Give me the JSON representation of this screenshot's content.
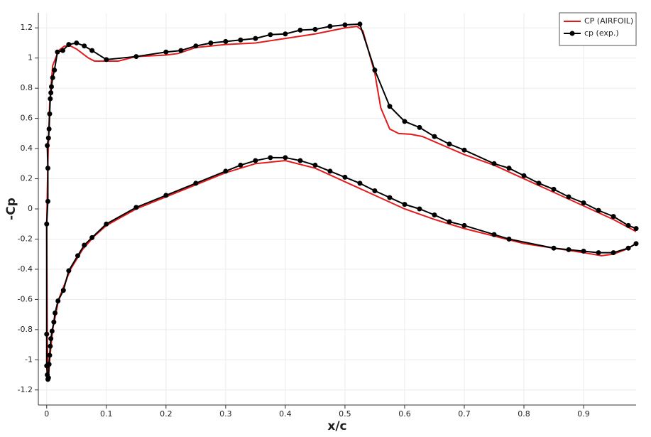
{
  "chart_data": {
    "type": "line",
    "xlabel": "x/c",
    "ylabel": "-Cp",
    "xlim": [
      -0.014,
      0.988
    ],
    "ylim": [
      -1.3,
      1.3
    ],
    "xticks": [
      0,
      0.1,
      0.2,
      0.3,
      0.4,
      0.5,
      0.6,
      0.7,
      0.8,
      0.9
    ],
    "yticks": [
      -1.2,
      -1,
      -0.8,
      -0.6,
      -0.4,
      -0.2,
      0,
      0.2,
      0.4,
      0.6,
      0.8,
      1,
      1.2
    ],
    "grid": true,
    "legend": "top-right",
    "series": [
      {
        "name": "CP (AIRFOIL)",
        "color": "#e31a1c",
        "markers": false,
        "x": [
          0.988,
          0.97,
          0.95,
          0.93,
          0.9,
          0.8,
          0.7,
          0.65,
          0.6,
          0.55,
          0.5,
          0.45,
          0.4,
          0.35,
          0.3,
          0.25,
          0.2,
          0.15,
          0.1,
          0.08,
          0.06,
          0.04,
          0.03,
          0.02,
          0.01,
          0.005,
          0.003,
          0.001,
          0,
          0.002,
          0.005,
          0.01,
          0.02,
          0.03,
          0.04,
          0.05,
          0.06,
          0.07,
          0.08,
          0.1,
          0.12,
          0.15,
          0.2,
          0.22,
          0.25,
          0.3,
          0.35,
          0.4,
          0.45,
          0.5,
          0.52,
          0.53,
          0.55,
          0.56,
          0.575,
          0.59,
          0.61,
          0.63,
          0.7,
          0.75,
          0.8,
          0.85,
          0.9,
          0.95,
          0.988
        ],
        "values": [
          -0.23,
          -0.27,
          -0.3,
          -0.31,
          -0.29,
          -0.23,
          -0.13,
          -0.07,
          0,
          0.09,
          0.18,
          0.27,
          0.32,
          0.3,
          0.24,
          0.16,
          0.08,
          0,
          -0.11,
          -0.18,
          -0.27,
          -0.4,
          -0.5,
          -0.6,
          -0.8,
          -1,
          -1.12,
          -0.9,
          -0.1,
          0.3,
          0.7,
          0.95,
          1.05,
          1.08,
          1.08,
          1.06,
          1.03,
          1,
          0.98,
          0.98,
          0.98,
          1.01,
          1.02,
          1.03,
          1.07,
          1.09,
          1.1,
          1.13,
          1.16,
          1.2,
          1.21,
          1.18,
          0.9,
          0.67,
          0.53,
          0.5,
          0.495,
          0.48,
          0.36,
          0.29,
          0.2,
          0.11,
          0.02,
          -0.07,
          -0.15
        ]
      },
      {
        "name": "cp (exp.)",
        "color": "#000000",
        "markers": true,
        "x": [
          0.988,
          0.975,
          0.95,
          0.925,
          0.9,
          0.875,
          0.85,
          0.775,
          0.75,
          0.7,
          0.675,
          0.65,
          0.625,
          0.6,
          0.575,
          0.55,
          0.525,
          0.5,
          0.475,
          0.45,
          0.425,
          0.4,
          0.375,
          0.35,
          0.325,
          0.3,
          0.25,
          0.2,
          0.15,
          0.1,
          0.076,
          0.063,
          0.052,
          0.037,
          0.028,
          0.019,
          0.014,
          0.012,
          0.009,
          0.007,
          0.006,
          0.005,
          0.004,
          0.003,
          0.002,
          0.001,
          0,
          0,
          0,
          0.002,
          0.002,
          0.001,
          0.003,
          0.004,
          0.005,
          0.006,
          0.007,
          0.008,
          0.01,
          0.013,
          0.018,
          0.027,
          0.037,
          0.05,
          0.063,
          0.076,
          0.1,
          0.15,
          0.2,
          0.225,
          0.25,
          0.275,
          0.3,
          0.325,
          0.35,
          0.375,
          0.4,
          0.425,
          0.45,
          0.475,
          0.5,
          0.525,
          0.55,
          0.575,
          0.6,
          0.625,
          0.65,
          0.675,
          0.7,
          0.75,
          0.775,
          0.8,
          0.825,
          0.85,
          0.875,
          0.9,
          0.925,
          0.95,
          0.975,
          0.988
        ],
        "values": [
          -0.23,
          -0.26,
          -0.29,
          -0.29,
          -0.28,
          -0.27,
          -0.26,
          -0.2,
          -0.17,
          -0.11,
          -0.085,
          -0.04,
          0,
          0.03,
          0.075,
          0.12,
          0.17,
          0.21,
          0.25,
          0.29,
          0.32,
          0.34,
          0.34,
          0.32,
          0.29,
          0.25,
          0.17,
          0.09,
          0.01,
          -0.1,
          -0.19,
          -0.24,
          -0.31,
          -0.41,
          -0.54,
          -0.61,
          -0.69,
          -0.75,
          -0.81,
          -0.86,
          -0.91,
          -0.97,
          -1.03,
          -1.12,
          -1.13,
          -1.1,
          -1.04,
          -0.83,
          -0.1,
          0.05,
          0.27,
          0.42,
          0.47,
          0.53,
          0.63,
          0.73,
          0.77,
          0.81,
          0.87,
          0.92,
          1.04,
          1.05,
          1.09,
          1.1,
          1.08,
          1.05,
          0.99,
          1.01,
          1.04,
          1.05,
          1.08,
          1.1,
          1.11,
          1.12,
          1.13,
          1.155,
          1.16,
          1.185,
          1.19,
          1.21,
          1.22,
          1.225,
          0.92,
          0.68,
          0.58,
          0.54,
          0.48,
          0.43,
          0.39,
          0.3,
          0.27,
          0.22,
          0.17,
          0.13,
          0.08,
          0.04,
          -0.01,
          -0.05,
          -0.11,
          -0.13
        ]
      }
    ]
  }
}
